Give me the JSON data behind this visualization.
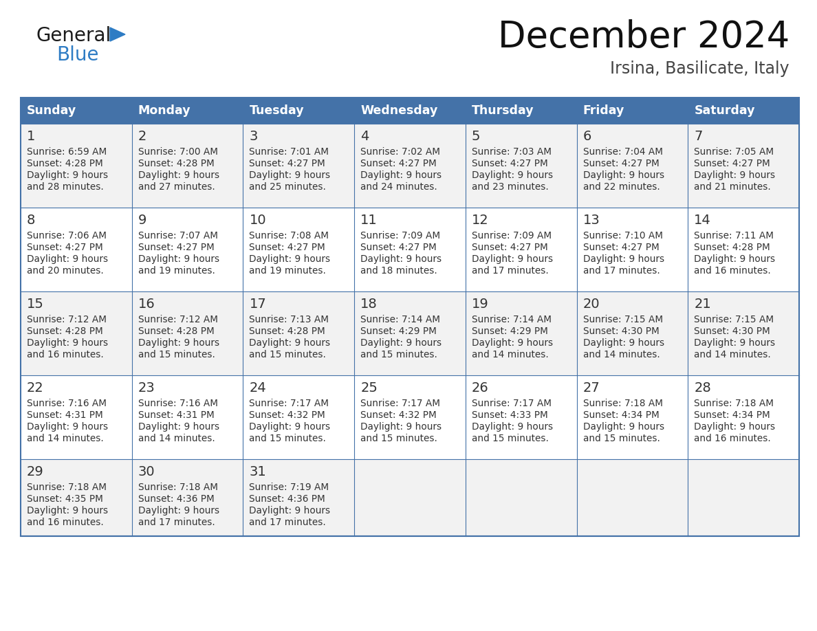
{
  "title": "December 2024",
  "subtitle": "Irsina, Basilicate, Italy",
  "header_bg": "#4472a8",
  "header_text_color": "#ffffff",
  "cell_bg_light": "#f2f2f2",
  "cell_bg_white": "#ffffff",
  "border_color": "#4472a8",
  "text_color": "#333333",
  "days_of_week": [
    "Sunday",
    "Monday",
    "Tuesday",
    "Wednesday",
    "Thursday",
    "Friday",
    "Saturday"
  ],
  "calendar": [
    [
      {
        "day": 1,
        "sunrise": "6:59 AM",
        "sunset": "4:28 PM",
        "daylight_extra": "28 minutes."
      },
      {
        "day": 2,
        "sunrise": "7:00 AM",
        "sunset": "4:28 PM",
        "daylight_extra": "27 minutes."
      },
      {
        "day": 3,
        "sunrise": "7:01 AM",
        "sunset": "4:27 PM",
        "daylight_extra": "25 minutes."
      },
      {
        "day": 4,
        "sunrise": "7:02 AM",
        "sunset": "4:27 PM",
        "daylight_extra": "24 minutes."
      },
      {
        "day": 5,
        "sunrise": "7:03 AM",
        "sunset": "4:27 PM",
        "daylight_extra": "23 minutes."
      },
      {
        "day": 6,
        "sunrise": "7:04 AM",
        "sunset": "4:27 PM",
        "daylight_extra": "22 minutes."
      },
      {
        "day": 7,
        "sunrise": "7:05 AM",
        "sunset": "4:27 PM",
        "daylight_extra": "21 minutes."
      }
    ],
    [
      {
        "day": 8,
        "sunrise": "7:06 AM",
        "sunset": "4:27 PM",
        "daylight_extra": "20 minutes."
      },
      {
        "day": 9,
        "sunrise": "7:07 AM",
        "sunset": "4:27 PM",
        "daylight_extra": "19 minutes."
      },
      {
        "day": 10,
        "sunrise": "7:08 AM",
        "sunset": "4:27 PM",
        "daylight_extra": "19 minutes."
      },
      {
        "day": 11,
        "sunrise": "7:09 AM",
        "sunset": "4:27 PM",
        "daylight_extra": "18 minutes."
      },
      {
        "day": 12,
        "sunrise": "7:09 AM",
        "sunset": "4:27 PM",
        "daylight_extra": "17 minutes."
      },
      {
        "day": 13,
        "sunrise": "7:10 AM",
        "sunset": "4:27 PM",
        "daylight_extra": "17 minutes."
      },
      {
        "day": 14,
        "sunrise": "7:11 AM",
        "sunset": "4:28 PM",
        "daylight_extra": "16 minutes."
      }
    ],
    [
      {
        "day": 15,
        "sunrise": "7:12 AM",
        "sunset": "4:28 PM",
        "daylight_extra": "16 minutes."
      },
      {
        "day": 16,
        "sunrise": "7:12 AM",
        "sunset": "4:28 PM",
        "daylight_extra": "15 minutes."
      },
      {
        "day": 17,
        "sunrise": "7:13 AM",
        "sunset": "4:28 PM",
        "daylight_extra": "15 minutes."
      },
      {
        "day": 18,
        "sunrise": "7:14 AM",
        "sunset": "4:29 PM",
        "daylight_extra": "15 minutes."
      },
      {
        "day": 19,
        "sunrise": "7:14 AM",
        "sunset": "4:29 PM",
        "daylight_extra": "14 minutes."
      },
      {
        "day": 20,
        "sunrise": "7:15 AM",
        "sunset": "4:30 PM",
        "daylight_extra": "14 minutes."
      },
      {
        "day": 21,
        "sunrise": "7:15 AM",
        "sunset": "4:30 PM",
        "daylight_extra": "14 minutes."
      }
    ],
    [
      {
        "day": 22,
        "sunrise": "7:16 AM",
        "sunset": "4:31 PM",
        "daylight_extra": "14 minutes."
      },
      {
        "day": 23,
        "sunrise": "7:16 AM",
        "sunset": "4:31 PM",
        "daylight_extra": "14 minutes."
      },
      {
        "day": 24,
        "sunrise": "7:17 AM",
        "sunset": "4:32 PM",
        "daylight_extra": "15 minutes."
      },
      {
        "day": 25,
        "sunrise": "7:17 AM",
        "sunset": "4:32 PM",
        "daylight_extra": "15 minutes."
      },
      {
        "day": 26,
        "sunrise": "7:17 AM",
        "sunset": "4:33 PM",
        "daylight_extra": "15 minutes."
      },
      {
        "day": 27,
        "sunrise": "7:18 AM",
        "sunset": "4:34 PM",
        "daylight_extra": "15 minutes."
      },
      {
        "day": 28,
        "sunrise": "7:18 AM",
        "sunset": "4:34 PM",
        "daylight_extra": "16 minutes."
      }
    ],
    [
      {
        "day": 29,
        "sunrise": "7:18 AM",
        "sunset": "4:35 PM",
        "daylight_extra": "16 minutes."
      },
      {
        "day": 30,
        "sunrise": "7:18 AM",
        "sunset": "4:36 PM",
        "daylight_extra": "17 minutes."
      },
      {
        "day": 31,
        "sunrise": "7:19 AM",
        "sunset": "4:36 PM",
        "daylight_extra": "17 minutes."
      },
      null,
      null,
      null,
      null
    ]
  ],
  "logo_text1": "General",
  "logo_text2": "Blue",
  "logo_color1": "#1a1a1a",
  "logo_color2": "#2e7cc4",
  "logo_triangle_color": "#2e7cc4",
  "title_color": "#111111",
  "subtitle_color": "#444444"
}
